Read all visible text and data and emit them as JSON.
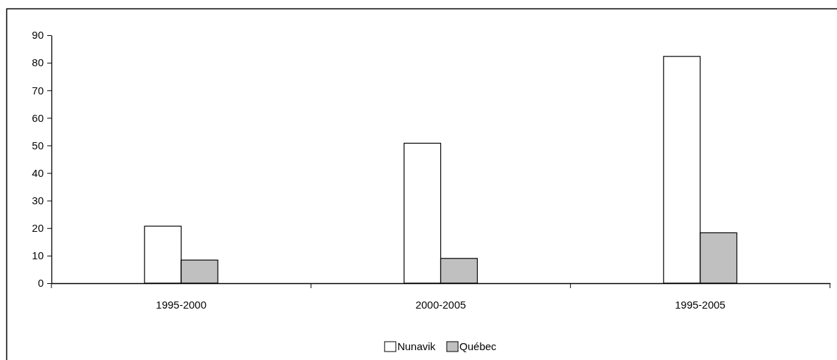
{
  "chart_data": {
    "type": "bar",
    "categories": [
      "1995-2000",
      "2000-2005",
      "1995-2005"
    ],
    "series": [
      {
        "name": "Nunavik",
        "color": "#ffffff",
        "values": [
          20.7,
          50.8,
          82.3
        ]
      },
      {
        "name": "Québec",
        "color": "#c0c0c0",
        "values": [
          8.4,
          9.0,
          18.3
        ]
      }
    ],
    "ylim": [
      0,
      90
    ],
    "yticks": [
      0,
      10,
      20,
      30,
      40,
      50,
      60,
      70,
      80,
      90
    ],
    "grid": false,
    "legend": "bottom"
  }
}
